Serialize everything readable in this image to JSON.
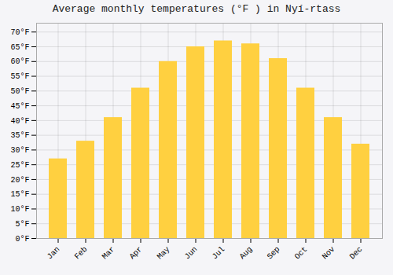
{
  "chart_data": {
    "type": "bar",
    "title": "Average monthly temperatures (°F ) in Nyí-rtass",
    "categories": [
      "Jan",
      "Feb",
      "Mar",
      "Apr",
      "May",
      "Jun",
      "Jul",
      "Aug",
      "Sep",
      "Oct",
      "Nov",
      "Dec"
    ],
    "values": [
      27,
      33,
      41,
      51,
      60,
      65,
      67,
      66,
      61,
      51,
      41,
      32
    ],
    "color": "#FFD040",
    "ylim": [
      0,
      73
    ],
    "yticks": [
      {
        "value": 0,
        "label": "0°F"
      },
      {
        "value": 5,
        "label": "5°F"
      },
      {
        "value": 10,
        "label": "10°F"
      },
      {
        "value": 15,
        "label": "15°F"
      },
      {
        "value": 20,
        "label": "20°F"
      },
      {
        "value": 25,
        "label": "25°F"
      },
      {
        "value": 30,
        "label": "30°F"
      },
      {
        "value": 35,
        "label": "35°F"
      },
      {
        "value": 40,
        "label": "40°F"
      },
      {
        "value": 45,
        "label": "45°F"
      },
      {
        "value": 50,
        "label": "50°F"
      },
      {
        "value": 55,
        "label": "55°F"
      },
      {
        "value": 60,
        "label": "60°F"
      },
      {
        "value": 65,
        "label": "65°F"
      },
      {
        "value": 70,
        "label": "70°F"
      }
    ],
    "grid": true
  }
}
